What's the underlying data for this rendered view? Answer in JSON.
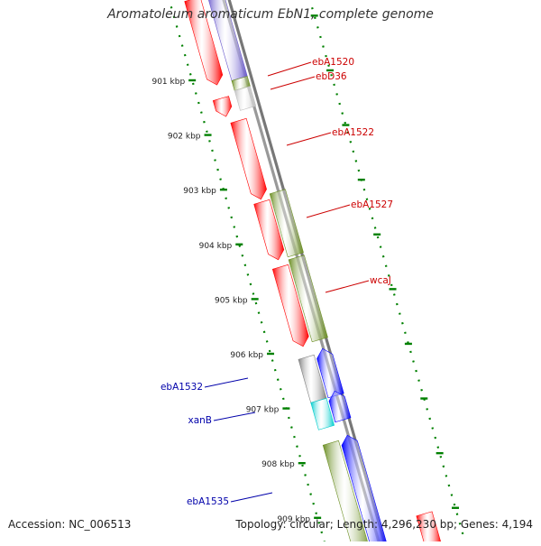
{
  "title": "Aromatoleum aromaticum EbN1, complete genome",
  "footer": {
    "accession": "Accession: NC_006513",
    "summary": "Topology: circular; Length: 4,296,230 bp; Genes: 4,194"
  },
  "kbp_labels": [
    {
      "label": "901 kbp",
      "kbp": 901
    },
    {
      "label": "902 kbp",
      "kbp": 902
    },
    {
      "label": "903 kbp",
      "kbp": 903
    },
    {
      "label": "904 kbp",
      "kbp": 904
    },
    {
      "label": "905 kbp",
      "kbp": 905
    },
    {
      "label": "906 kbp",
      "kbp": 906
    },
    {
      "label": "907 kbp",
      "kbp": 907
    },
    {
      "label": "908 kbp",
      "kbp": 908
    },
    {
      "label": "909 kbp",
      "kbp": 909
    }
  ],
  "gene_labels": [
    {
      "name": "ebA1520",
      "color": "#cc0000"
    },
    {
      "name": "ebD36",
      "color": "#cc0000"
    },
    {
      "name": "ebA1522",
      "color": "#cc0000"
    },
    {
      "name": "ebA1527",
      "color": "#cc0000"
    },
    {
      "name": "wcaJ",
      "color": "#cc0000"
    },
    {
      "name": "ebA1532",
      "color": "#0000aa"
    },
    {
      "name": "xanB",
      "color": "#0000aa"
    },
    {
      "name": "ebA1535",
      "color": "#0000aa"
    }
  ],
  "feature_colors": {
    "red": "#ff0000",
    "olive": "#6b8e23",
    "blue": "#0000ff",
    "cyan": "#00cccc",
    "gray": "#808080",
    "lightgray": "#c0c0c0",
    "slate": "#6a5acd",
    "backbone": "#888888",
    "tick": "#008000"
  }
}
